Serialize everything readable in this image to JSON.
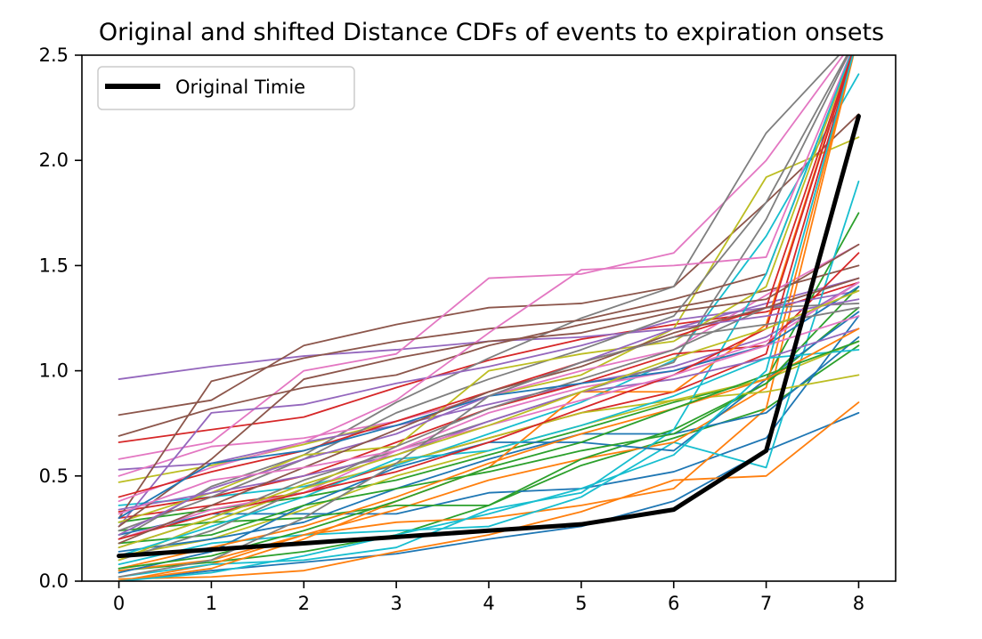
{
  "chart_data": {
    "type": "line",
    "title": "Original and shifted Distance CDFs of events to expiration onsets",
    "xlabel": "",
    "ylabel": "",
    "x": [
      0,
      1,
      2,
      3,
      4,
      5,
      6,
      7,
      8
    ],
    "xlim": [
      -0.4,
      8.4
    ],
    "ylim": [
      0,
      2.5
    ],
    "x_ticks": [
      0,
      1,
      2,
      3,
      4,
      5,
      6,
      7,
      8
    ],
    "y_ticks": [
      "0.0",
      "0.5",
      "1.0",
      "1.5",
      "2.0",
      "2.5"
    ],
    "grid": false,
    "legend": {
      "position": "top-left",
      "entries": [
        "Original Timie"
      ]
    },
    "series": [
      {
        "name": "Original Timie",
        "color": "#000000",
        "highlight": true,
        "values": [
          0.12,
          0.15,
          0.18,
          0.21,
          0.24,
          0.27,
          0.34,
          0.62,
          2.21
        ]
      },
      {
        "color": "#1f77b4",
        "values": [
          0.0,
          0.05,
          0.09,
          0.13,
          0.2,
          0.26,
          0.38,
          0.62,
          0.8
        ]
      },
      {
        "color": "#ff7f0e",
        "values": [
          0.01,
          0.02,
          0.05,
          0.14,
          0.22,
          0.33,
          0.48,
          0.5,
          0.85
        ]
      },
      {
        "color": "#2ca02c",
        "values": [
          0.05,
          0.09,
          0.14,
          0.22,
          0.36,
          0.55,
          0.68,
          0.82,
          1.12
        ]
      },
      {
        "color": "#d62728",
        "values": [
          0.66,
          0.72,
          0.78,
          0.92,
          1.05,
          1.15,
          1.22,
          1.28,
          1.42
        ]
      },
      {
        "color": "#9467bd",
        "values": [
          0.96,
          1.02,
          1.07,
          1.1,
          1.14,
          1.16,
          1.2,
          1.32,
          1.44
        ]
      },
      {
        "color": "#8c564b",
        "values": [
          0.79,
          0.86,
          1.12,
          1.22,
          1.3,
          1.32,
          1.4,
          1.8,
          2.22
        ]
      },
      {
        "color": "#e377c2",
        "values": [
          0.58,
          0.66,
          1.0,
          1.08,
          1.44,
          1.46,
          1.56,
          2.0,
          2.6
        ]
      },
      {
        "color": "#7f7f7f",
        "values": [
          0.2,
          0.45,
          0.6,
          0.85,
          1.06,
          1.25,
          1.4,
          2.13,
          2.6
        ]
      },
      {
        "color": "#bcbd22",
        "values": [
          0.47,
          0.55,
          0.65,
          0.76,
          0.88,
          0.98,
          1.2,
          1.92,
          2.11
        ]
      },
      {
        "color": "#17becf",
        "values": [
          0.36,
          0.4,
          0.45,
          0.55,
          0.7,
          0.85,
          1.05,
          1.64,
          2.41
        ]
      },
      {
        "color": "#1f77b4",
        "values": [
          0.22,
          0.32,
          0.32,
          0.32,
          0.42,
          0.44,
          0.52,
          0.68,
          1.26
        ]
      },
      {
        "color": "#ff7f0e",
        "values": [
          0.05,
          0.1,
          0.22,
          0.28,
          0.3,
          0.36,
          0.44,
          0.82,
          2.6
        ]
      },
      {
        "color": "#2ca02c",
        "values": [
          0.28,
          0.34,
          0.4,
          0.48,
          0.6,
          0.72,
          0.85,
          0.96,
          1.75
        ]
      },
      {
        "color": "#d62728",
        "values": [
          0.3,
          0.36,
          0.42,
          0.56,
          0.68,
          0.8,
          0.9,
          1.08,
          2.6
        ]
      },
      {
        "color": "#9467bd",
        "values": [
          0.53,
          0.56,
          0.66,
          0.74,
          0.84,
          0.94,
          1.02,
          1.16,
          1.42
        ]
      },
      {
        "color": "#8c564b",
        "values": [
          0.69,
          0.82,
          0.92,
          0.98,
          1.12,
          1.22,
          1.3,
          1.38,
          1.5
        ]
      },
      {
        "color": "#e377c2",
        "values": [
          0.5,
          0.64,
          0.68,
          0.76,
          0.88,
          1.0,
          1.1,
          1.36,
          1.6
        ]
      },
      {
        "color": "#7f7f7f",
        "values": [
          0.16,
          0.3,
          0.48,
          0.62,
          0.76,
          0.9,
          1.04,
          1.72,
          2.6
        ]
      },
      {
        "color": "#bcbd22",
        "values": [
          0.12,
          0.2,
          0.34,
          0.5,
          0.62,
          0.74,
          0.86,
          0.96,
          1.14
        ]
      },
      {
        "color": "#17becf",
        "values": [
          0.08,
          0.18,
          0.22,
          0.24,
          0.26,
          0.4,
          0.66,
          0.54,
          1.9
        ]
      },
      {
        "color": "#1f77b4",
        "values": [
          0.14,
          0.2,
          0.28,
          0.44,
          0.58,
          0.7,
          0.7,
          0.8,
          1.16
        ]
      },
      {
        "color": "#ff7f0e",
        "values": [
          0.0,
          0.08,
          0.22,
          0.34,
          0.48,
          0.58,
          0.66,
          0.92,
          2.6
        ]
      },
      {
        "color": "#2ca02c",
        "values": [
          0.24,
          0.28,
          0.3,
          0.36,
          0.36,
          0.58,
          0.72,
          0.94,
          1.3
        ]
      },
      {
        "color": "#d62728",
        "values": [
          0.33,
          0.4,
          0.5,
          0.66,
          0.82,
          0.94,
          1.08,
          1.12,
          1.56
        ]
      },
      {
        "color": "#9467bd",
        "values": [
          0.26,
          0.8,
          0.84,
          0.94,
          1.02,
          1.12,
          1.24,
          1.3,
          1.38
        ]
      },
      {
        "color": "#8c564b",
        "values": [
          0.3,
          0.95,
          1.06,
          1.14,
          1.2,
          1.24,
          1.34,
          1.46,
          2.6
        ]
      },
      {
        "color": "#e377c2",
        "values": [
          0.38,
          0.54,
          0.66,
          0.86,
          1.18,
          1.48,
          1.5,
          1.54,
          2.6
        ]
      },
      {
        "color": "#7f7f7f",
        "values": [
          0.24,
          0.4,
          0.58,
          0.8,
          0.96,
          1.1,
          1.26,
          1.8,
          2.6
        ]
      },
      {
        "color": "#bcbd22",
        "values": [
          0.28,
          0.42,
          0.6,
          0.64,
          1.0,
          1.08,
          1.14,
          1.4,
          2.6
        ]
      },
      {
        "color": "#17becf",
        "values": [
          0.02,
          0.08,
          0.1,
          0.16,
          0.34,
          0.42,
          0.72,
          1.46,
          2.6
        ]
      },
      {
        "color": "#1f77b4",
        "values": [
          0.04,
          0.14,
          0.36,
          0.54,
          0.66,
          0.66,
          0.62,
          0.96,
          1.28
        ]
      },
      {
        "color": "#ff7f0e",
        "values": [
          0.0,
          0.06,
          0.2,
          0.38,
          0.54,
          0.9,
          0.9,
          1.22,
          2.6
        ]
      },
      {
        "color": "#2ca02c",
        "values": [
          0.18,
          0.22,
          0.36,
          0.44,
          0.52,
          0.62,
          0.7,
          0.94,
          1.4
        ]
      },
      {
        "color": "#d62728",
        "values": [
          0.4,
          0.52,
          0.62,
          0.76,
          0.9,
          1.04,
          1.16,
          1.3,
          2.6
        ]
      },
      {
        "color": "#9467bd",
        "values": [
          0.34,
          0.42,
          0.5,
          0.6,
          0.76,
          0.9,
          0.96,
          1.06,
          1.2
        ]
      },
      {
        "color": "#8c564b",
        "values": [
          0.26,
          0.58,
          0.96,
          1.06,
          1.14,
          1.18,
          1.28,
          1.34,
          1.6
        ]
      },
      {
        "color": "#e377c2",
        "values": [
          0.2,
          0.34,
          0.42,
          0.62,
          0.8,
          0.92,
          1.0,
          1.14,
          1.42
        ]
      },
      {
        "color": "#7f7f7f",
        "values": [
          0.1,
          0.24,
          0.44,
          0.64,
          0.82,
          0.96,
          1.1,
          1.3,
          1.32
        ]
      },
      {
        "color": "#bcbd22",
        "values": [
          0.1,
          0.28,
          0.44,
          0.56,
          0.68,
          0.8,
          0.86,
          0.9,
          0.98
        ]
      },
      {
        "color": "#17becf",
        "values": [
          0.12,
          0.26,
          0.4,
          0.58,
          0.62,
          0.74,
          0.88,
          1.06,
          1.1
        ]
      },
      {
        "color": "#1f77b4",
        "values": [
          0.3,
          0.56,
          0.62,
          0.74,
          0.88,
          0.94,
          1.0,
          1.12,
          1.4
        ]
      },
      {
        "color": "#ff7f0e",
        "values": [
          0.06,
          0.16,
          0.26,
          0.4,
          0.56,
          0.7,
          0.82,
          0.96,
          1.2
        ]
      },
      {
        "color": "#2ca02c",
        "values": [
          0.06,
          0.12,
          0.24,
          0.38,
          0.54,
          0.66,
          0.82,
          0.98,
          1.14
        ]
      },
      {
        "color": "#d62728",
        "values": [
          0.2,
          0.32,
          0.42,
          0.52,
          0.66,
          0.82,
          0.98,
          1.2,
          2.6
        ]
      },
      {
        "color": "#9467bd",
        "values": [
          0.22,
          0.44,
          0.58,
          0.7,
          0.88,
          1.04,
          1.2,
          1.26,
          1.34
        ]
      },
      {
        "color": "#8c564b",
        "values": [
          0.18,
          0.36,
          0.54,
          0.72,
          0.9,
          1.02,
          1.18,
          1.3,
          1.44
        ]
      },
      {
        "color": "#e377c2",
        "values": [
          0.32,
          0.48,
          0.54,
          0.62,
          0.74,
          0.86,
          0.98,
          1.12,
          1.26
        ]
      },
      {
        "color": "#7f7f7f",
        "values": [
          0.02,
          0.1,
          0.3,
          0.56,
          0.88,
          1.04,
          1.16,
          1.22,
          1.3
        ]
      },
      {
        "color": "#bcbd22",
        "values": [
          0.16,
          0.3,
          0.46,
          0.6,
          0.74,
          0.9,
          1.06,
          1.2,
          1.38
        ]
      },
      {
        "color": "#17becf",
        "values": [
          0.0,
          0.04,
          0.12,
          0.22,
          0.32,
          0.44,
          0.6,
          1.0,
          2.6
        ]
      }
    ]
  }
}
